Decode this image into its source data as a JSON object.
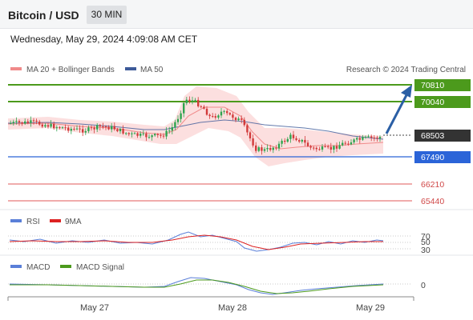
{
  "header": {
    "title": "Bitcoin / USD",
    "timeframe": "30 MIN",
    "datetime": "Wednesday, May 29, 2024 4:09:08 AM CET"
  },
  "legend": {
    "ma20": "MA 20 + Bollinger Bands",
    "ma50": "MA 50",
    "credit": "Research © 2024 Trading Central"
  },
  "price_levels": [
    {
      "label": "70810",
      "color": "#4c9a1c",
      "kind": "resistance"
    },
    {
      "label": "70040",
      "color": "#4c9a1c",
      "kind": "resistance"
    },
    {
      "label": "68503",
      "color": "#333333",
      "kind": "last"
    },
    {
      "label": "67490",
      "color": "#2b64d8",
      "kind": "pivot"
    },
    {
      "label": "66210",
      "color": "#e05a5a",
      "kind": "support"
    },
    {
      "label": "65440",
      "color": "#e05a5a",
      "kind": "support"
    }
  ],
  "rsi_panel": {
    "label": "RSI",
    "ma_label": "9MA",
    "levels": [
      "70",
      "50",
      "30"
    ]
  },
  "macd_panel": {
    "label": "MACD",
    "signal_label": "MACD Signal",
    "zero": "0"
  },
  "x_axis": {
    "labels": [
      "May 27",
      "May 28",
      "May 29"
    ]
  },
  "colors": {
    "bullish": "#2ea44f",
    "bearish": "#d23b3b",
    "ma20": "#f08a8a",
    "ma50": "#3d5a99",
    "bollinger_fill": "#fbd9d9",
    "resistance": "#4c9a1c",
    "pivot": "#2b64d8",
    "support": "#e05a5a",
    "arrow": "#2b5fa5"
  }
}
